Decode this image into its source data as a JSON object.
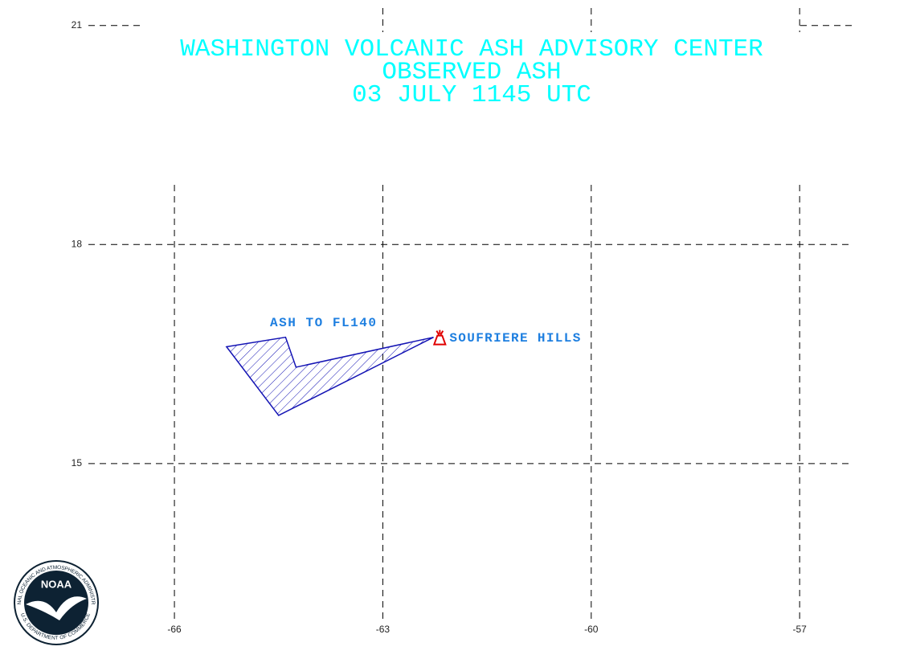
{
  "chart_data": {
    "type": "map",
    "title": [
      "WASHINGTON VOLCANIC ASH ADVISORY CENTER",
      "OBSERVED ASH",
      "03 JULY 1145 UTC"
    ],
    "title_color": "#00ffff",
    "xlim": [
      -67.25,
      -56.25
    ],
    "ylim": [
      12.5,
      21.25
    ],
    "xticks": [
      -66,
      -63,
      -60,
      -57
    ],
    "yticks": [
      15,
      18,
      21
    ],
    "grid": true,
    "ash_area": {
      "label": "ASH TO FL140",
      "label_color": "#1e7fe0",
      "outline_color": "#1414b4",
      "lon": [
        -65.25,
        -64.4,
        -64.25,
        -62.27,
        -64.5
      ],
      "lat": [
        16.6,
        16.73,
        16.32,
        16.73,
        15.66
      ]
    },
    "volcano": {
      "name": "SOUFRIERE HILLS",
      "lon": -62.18,
      "lat": 16.72,
      "color": "#e00000",
      "label_color": "#1e7fe0"
    },
    "logo": {
      "name": "NOAA",
      "ring_top": "NATIONAL OCEANIC AND ATMOSPHERIC ADMINISTRATION",
      "ring_bottom": "U.S. DEPARTMENT OF COMMERCE"
    }
  }
}
